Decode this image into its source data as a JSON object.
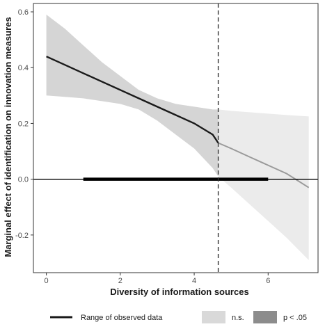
{
  "chart_data": {
    "type": "line",
    "xlabel": "Diversity of information sources",
    "ylabel": "Marginal effect of identification on innovation measures",
    "xlim": [
      -0.35,
      7.35
    ],
    "ylim": [
      -0.335,
      0.63
    ],
    "x_ticks": [
      0,
      2,
      4,
      6
    ],
    "y_ticks": [
      -0.2,
      0.0,
      0.2,
      0.4,
      0.6
    ],
    "y_tick_labels": [
      "-0.2",
      "0.0",
      "0.2",
      "0.4",
      "0.6"
    ],
    "grid": false,
    "threshold_x": 4.65,
    "zero_line_y": 0,
    "observed_range": [
      1.0,
      6.0
    ],
    "effect_line": {
      "x": [
        0,
        0.5,
        1,
        1.5,
        2,
        2.5,
        3,
        3.5,
        4,
        4.5,
        4.65,
        5,
        5.5,
        6,
        6.5,
        7.1
      ],
      "y": [
        0.44,
        0.41,
        0.38,
        0.35,
        0.32,
        0.29,
        0.26,
        0.23,
        0.2,
        0.16,
        0.13,
        0.11,
        0.08,
        0.05,
        0.02,
        -0.03
      ]
    },
    "ci_upper": {
      "x": [
        0,
        0.5,
        1,
        1.5,
        2,
        2.5,
        3,
        3.5,
        4,
        4.5,
        4.65,
        5,
        5.5,
        6,
        6.5,
        7.1
      ],
      "y": [
        0.59,
        0.54,
        0.48,
        0.42,
        0.37,
        0.32,
        0.29,
        0.27,
        0.26,
        0.25,
        0.25,
        0.245,
        0.24,
        0.235,
        0.23,
        0.225
      ]
    },
    "ci_lower": {
      "x": [
        0,
        0.5,
        1,
        1.5,
        2,
        2.5,
        3,
        3.5,
        4,
        4.5,
        4.65,
        5,
        5.5,
        6,
        6.5,
        7.1
      ],
      "y": [
        0.3,
        0.295,
        0.29,
        0.28,
        0.27,
        0.25,
        0.21,
        0.16,
        0.11,
        0.04,
        0.01,
        -0.03,
        -0.09,
        -0.15,
        -0.21,
        -0.29
      ]
    },
    "legend": {
      "placement": "bottom",
      "range_label": "Range of observed data",
      "ns_label": "n.s.",
      "sig_label": "p < .05"
    },
    "colors": {
      "line_sig": "#1a1a1a",
      "line_ns": "#9a9a9a",
      "band_sig": "#d5d5d5",
      "band_ns": "#ebebeb",
      "legend_ns_swatch": "#d9d9d9",
      "legend_sig_swatch": "#8c8c8c",
      "frame": "#333333",
      "zero_line": "#000000",
      "range_bar": "#000000",
      "threshold": "#333333"
    }
  }
}
